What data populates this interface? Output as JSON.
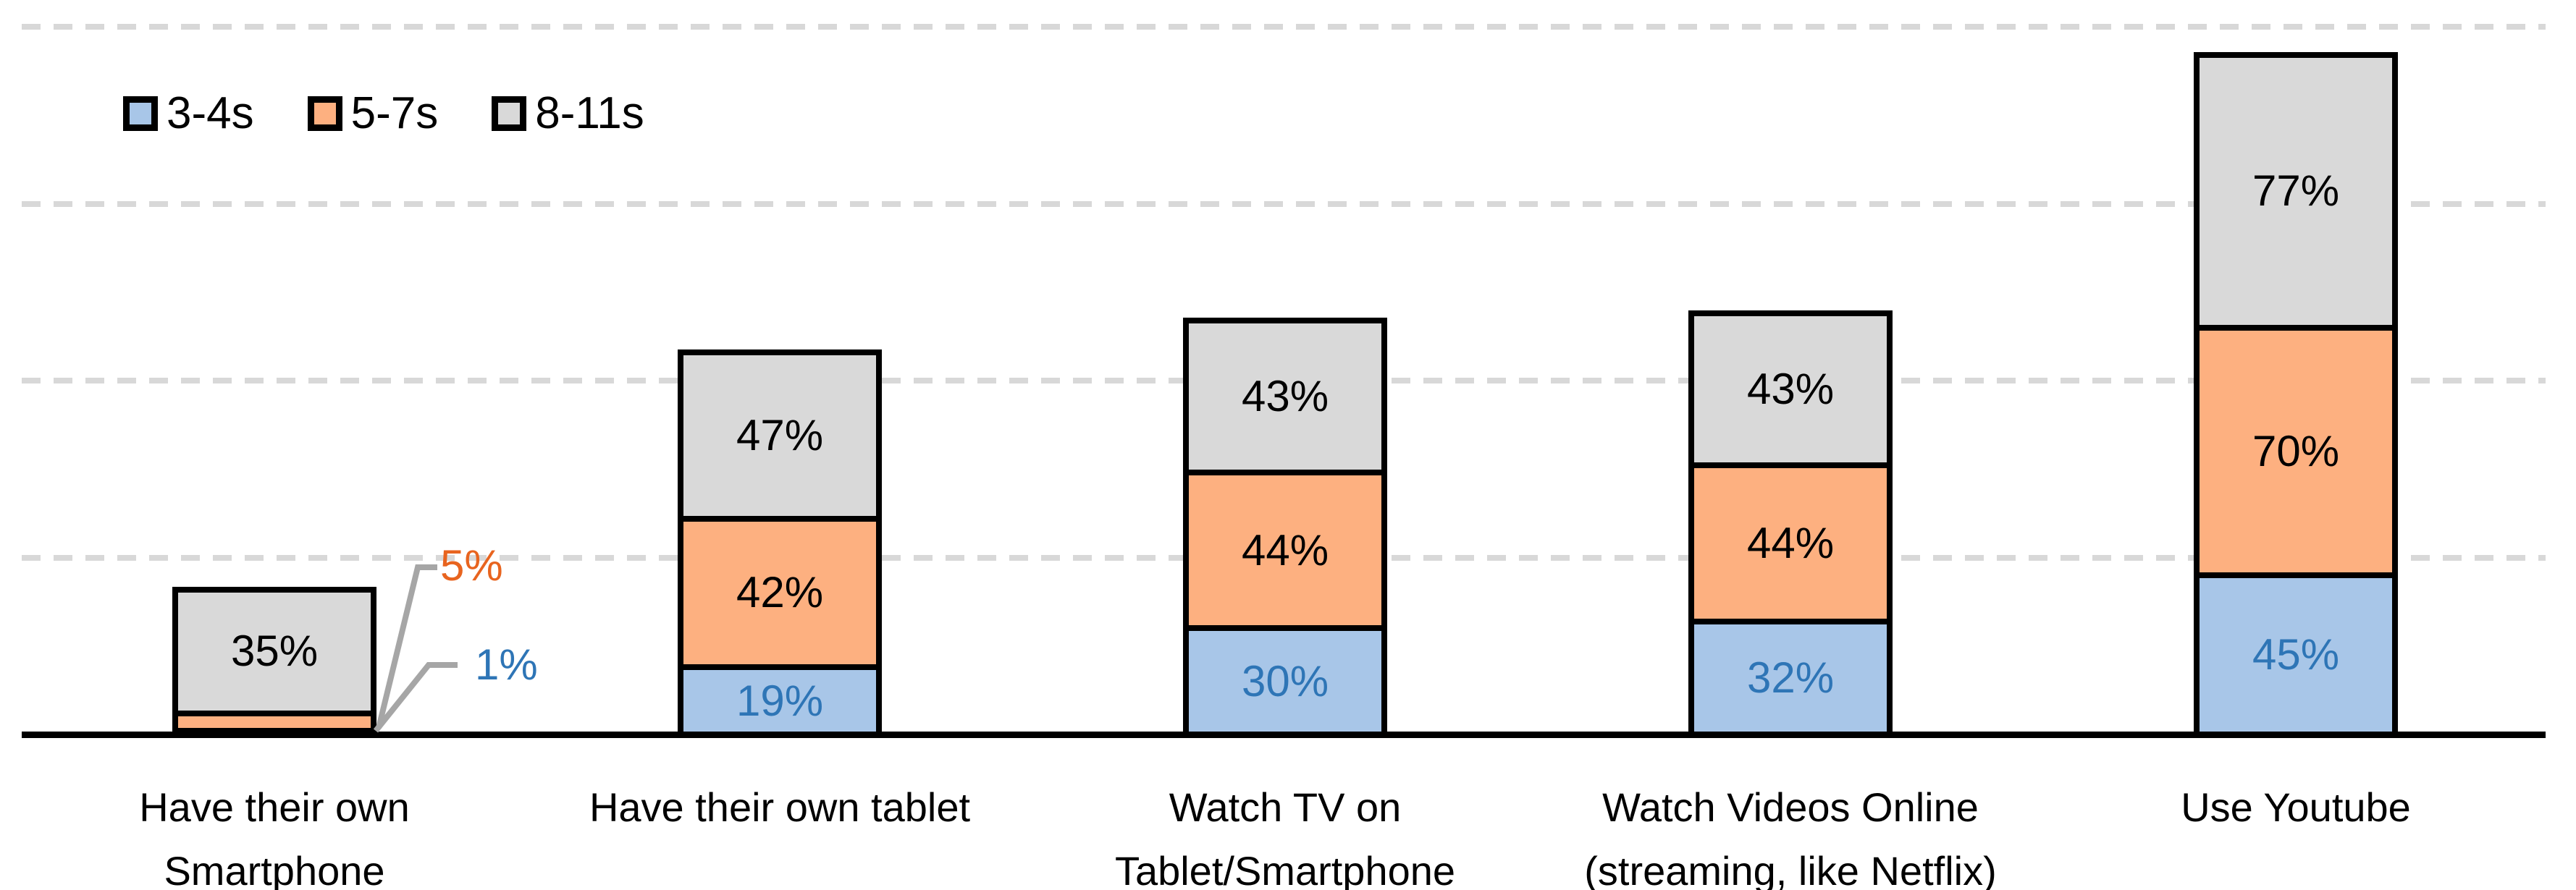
{
  "chart_data": {
    "type": "bar",
    "stacked": true,
    "title": "",
    "xlabel": "",
    "ylabel": "",
    "value_suffix": "%",
    "ylim": [
      0,
      200
    ],
    "gridlines_pct": [
      50,
      100,
      150,
      200
    ],
    "grid": "dashed",
    "legend_position": "top-left",
    "categories": [
      "Have their own\nSmartphone",
      "Have their own tablet",
      "Watch TV on\nTablet/Smartphone",
      "Watch Videos Online\n(streaming, like Netflix)",
      "Use Youtube"
    ],
    "series": [
      {
        "name": "3-4s",
        "color": "#A8C6E8",
        "label_color": "#2E75B6",
        "values": [
          1,
          19,
          30,
          32,
          45
        ]
      },
      {
        "name": "5-7s",
        "color": "#FDB080",
        "label_color": "#000000",
        "values": [
          5,
          42,
          44,
          44,
          70
        ]
      },
      {
        "name": "8-11s",
        "color": "#D9D9D9",
        "label_color": "#000000",
        "values": [
          35,
          47,
          43,
          43,
          77
        ]
      }
    ],
    "callouts": [
      {
        "category": 0,
        "series": 1,
        "value": 5,
        "label": "5%",
        "color": "#E8641F"
      },
      {
        "category": 0,
        "series": 0,
        "value": 1,
        "label": "1%",
        "color": "#2E75B6"
      }
    ]
  },
  "colors": {
    "bar_border": "#000000",
    "axis": "#000000",
    "gridline": "#D8D8D8",
    "leader_line": "#A6A6A6",
    "blue_fill": "#A8C6E8",
    "orange_fill": "#FDB080",
    "gray_fill": "#D9D9D9",
    "blue_text": "#2E75B6",
    "orange_text": "#E8641F"
  }
}
